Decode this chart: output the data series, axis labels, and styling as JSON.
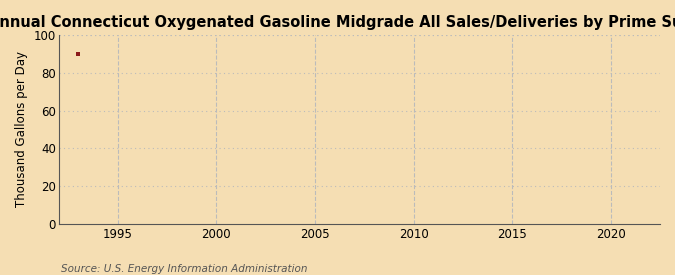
{
  "title": "Annual Connecticut Oxygenated Gasoline Midgrade All Sales/Deliveries by Prime Supplier",
  "ylabel": "Thousand Gallons per Day",
  "source_text": "Source: U.S. Energy Information Administration",
  "background_color": "#f5deb3",
  "plot_background_color": "#f5deb3",
  "data_x": [
    1993
  ],
  "data_y": [
    90.0
  ],
  "data_color": "#8b1a1a",
  "xlim": [
    1992.0,
    2022.5
  ],
  "ylim": [
    0,
    100
  ],
  "xticks": [
    1995,
    2000,
    2005,
    2010,
    2015,
    2020
  ],
  "yticks": [
    0,
    20,
    40,
    60,
    80,
    100
  ],
  "hgrid_color": "#bbbbbb",
  "vgrid_color": "#bbbbbb",
  "title_fontsize": 10.5,
  "label_fontsize": 8.5,
  "tick_fontsize": 8.5,
  "source_fontsize": 7.5
}
